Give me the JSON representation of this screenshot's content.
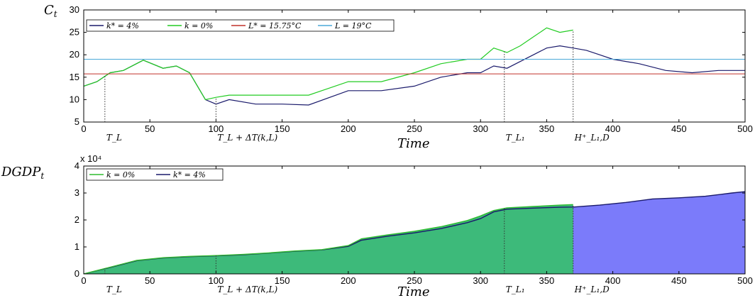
{
  "chart_data": [
    {
      "type": "line",
      "ylabel": "C_t",
      "xlabel": "Time",
      "xlim": [
        0,
        500
      ],
      "ylim": [
        5,
        30
      ],
      "xticks": [
        0,
        50,
        100,
        150,
        200,
        250,
        300,
        350,
        400,
        450,
        500
      ],
      "yticks": [
        5,
        10,
        15,
        20,
        25,
        30
      ],
      "grid": false,
      "legend_position": "top-left",
      "series": [
        {
          "name": "k* = 4%",
          "color": "#1a1a6b",
          "x": [
            0,
            10,
            20,
            30,
            45,
            60,
            70,
            80,
            92,
            100,
            110,
            130,
            150,
            170,
            200,
            225,
            250,
            270,
            290,
            300,
            310,
            320,
            330,
            340,
            350,
            360,
            370,
            380,
            390,
            400,
            420,
            440,
            460,
            480,
            500
          ],
          "y": [
            13,
            14,
            16,
            16.5,
            18.8,
            17,
            17.5,
            16,
            10,
            9,
            10,
            9,
            9,
            8.8,
            12,
            12,
            13,
            15,
            16,
            16,
            17.5,
            17,
            18.5,
            20,
            21.5,
            22,
            21.5,
            21,
            20,
            19,
            18,
            16.5,
            16,
            16.5,
            16.5
          ]
        },
        {
          "name": "k = 0%",
          "color": "#22cc22",
          "x": [
            0,
            10,
            20,
            30,
            45,
            60,
            70,
            80,
            92,
            100,
            110,
            130,
            150,
            170,
            200,
            225,
            250,
            270,
            290,
            300,
            310,
            320,
            330,
            340,
            350,
            360,
            370
          ],
          "y": [
            13,
            14,
            16,
            16.5,
            18.8,
            17,
            17.5,
            16,
            10,
            10.5,
            11,
            11,
            11,
            11,
            14,
            14,
            16,
            18,
            19,
            19,
            21.5,
            20.5,
            22,
            24,
            26,
            25,
            25.5
          ]
        },
        {
          "name": "L* = 15.75°C",
          "color": "#c0302a",
          "x": [
            0,
            500
          ],
          "y": [
            15.75,
            15.75
          ]
        },
        {
          "name": "L = 19°C",
          "color": "#4aa8d8",
          "x": [
            0,
            500
          ],
          "y": [
            19,
            19
          ]
        }
      ],
      "annotations": [
        {
          "x": 16,
          "label": "T_L"
        },
        {
          "x": 100,
          "label": "T_L + ΔT(k,L)"
        },
        {
          "x": 318,
          "label": "T_L₁"
        },
        {
          "x": 370,
          "label": "H⁺_L₁,D"
        }
      ]
    },
    {
      "type": "area",
      "ylabel": "DGDP_t",
      "xlabel": "Time",
      "y_exponent_label": "x 10⁴",
      "xlim": [
        0,
        500
      ],
      "ylim": [
        0,
        4
      ],
      "xticks": [
        0,
        50,
        100,
        150,
        200,
        250,
        300,
        350,
        400,
        450,
        500
      ],
      "yticks": [
        0,
        1,
        2,
        3,
        4
      ],
      "grid": false,
      "legend_position": "top-left",
      "series": [
        {
          "name": "k = 0%",
          "color": "#2fbb2f",
          "fill": "#3dba7a",
          "x": [
            0,
            20,
            40,
            60,
            80,
            100,
            120,
            140,
            160,
            180,
            200,
            210,
            230,
            250,
            270,
            290,
            300,
            310,
            320,
            340,
            360,
            370
          ],
          "y": [
            0,
            0.25,
            0.5,
            0.6,
            0.65,
            0.68,
            0.72,
            0.78,
            0.85,
            0.9,
            1.05,
            1.3,
            1.45,
            1.58,
            1.75,
            1.98,
            2.15,
            2.35,
            2.45,
            2.5,
            2.55,
            2.57
          ]
        },
        {
          "name": "k* = 4%",
          "color": "#1a1a6b",
          "fill": "#7b7bfa",
          "x": [
            0,
            20,
            40,
            60,
            80,
            100,
            120,
            140,
            160,
            180,
            200,
            210,
            230,
            250,
            270,
            290,
            300,
            310,
            320,
            340,
            360,
            370,
            390,
            410,
            430,
            450,
            470,
            490,
            500
          ],
          "y": [
            0,
            0.24,
            0.49,
            0.59,
            0.64,
            0.67,
            0.71,
            0.77,
            0.84,
            0.89,
            1.02,
            1.25,
            1.4,
            1.52,
            1.68,
            1.9,
            2.05,
            2.3,
            2.4,
            2.44,
            2.47,
            2.48,
            2.55,
            2.65,
            2.78,
            2.82,
            2.88,
            3.0,
            3.05
          ]
        }
      ],
      "annotations": [
        {
          "x": 16,
          "label": "T_L"
        },
        {
          "x": 100,
          "label": "T_L + ΔT(k,L)"
        },
        {
          "x": 318,
          "label": "T_L₁"
        },
        {
          "x": 370,
          "label": "H⁺_L₁,D"
        }
      ]
    }
  ]
}
